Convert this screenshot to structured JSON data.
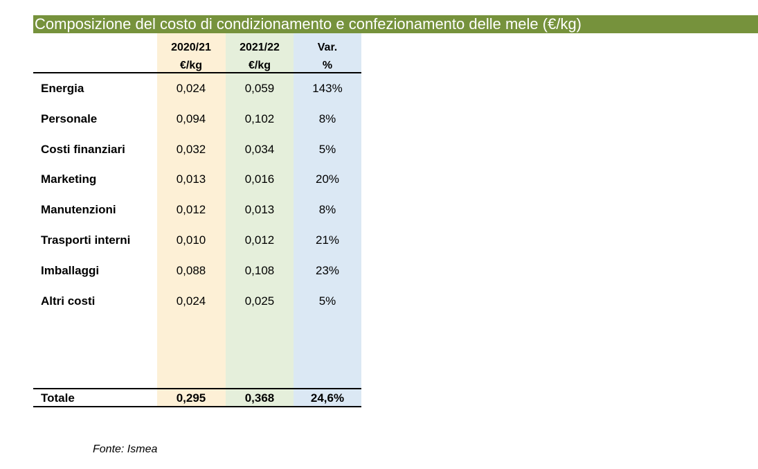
{
  "title": "Composizione del costo di condizionamento e confezionamento delle mele (€/kg)",
  "chart_data": {
    "type": "table",
    "columns": [
      {
        "line1": "2020/21",
        "line2": "€/kg"
      },
      {
        "line1": "2021/22",
        "line2": "€/kg"
      },
      {
        "line1": "Var.",
        "line2": "%"
      }
    ],
    "rows": [
      {
        "label": "Energia",
        "v2021": "0,024",
        "v2122": "0,059",
        "var": "143%"
      },
      {
        "label": "Personale",
        "v2021": "0,094",
        "v2122": "0,102",
        "var": "8%"
      },
      {
        "label": "Costi finanziari",
        "v2021": "0,032",
        "v2122": "0,034",
        "var": "5%"
      },
      {
        "label": "Marketing",
        "v2021": "0,013",
        "v2122": "0,016",
        "var": "20%"
      },
      {
        "label": "Manutenzioni",
        "v2021": "0,012",
        "v2122": "0,013",
        "var": "8%"
      },
      {
        "label": "Trasporti interni",
        "v2021": "0,010",
        "v2122": "0,012",
        "var": "21%"
      },
      {
        "label": "Imballaggi",
        "v2021": "0,088",
        "v2122": "0,108",
        "var": "23%"
      },
      {
        "label": "Altri costi",
        "v2021": "0,024",
        "v2122": "0,025",
        "var": "5%"
      }
    ],
    "total": {
      "label": "Totale",
      "v2021": "0,295",
      "v2122": "0,368",
      "var": "24,6%"
    }
  },
  "source": "Fonte: Ismea",
  "colors": {
    "title_bar": "#76923c",
    "col_2020_21": "#fdf0d6",
    "col_2021_22": "#e5efdb",
    "col_var": "#dbe8f4"
  }
}
